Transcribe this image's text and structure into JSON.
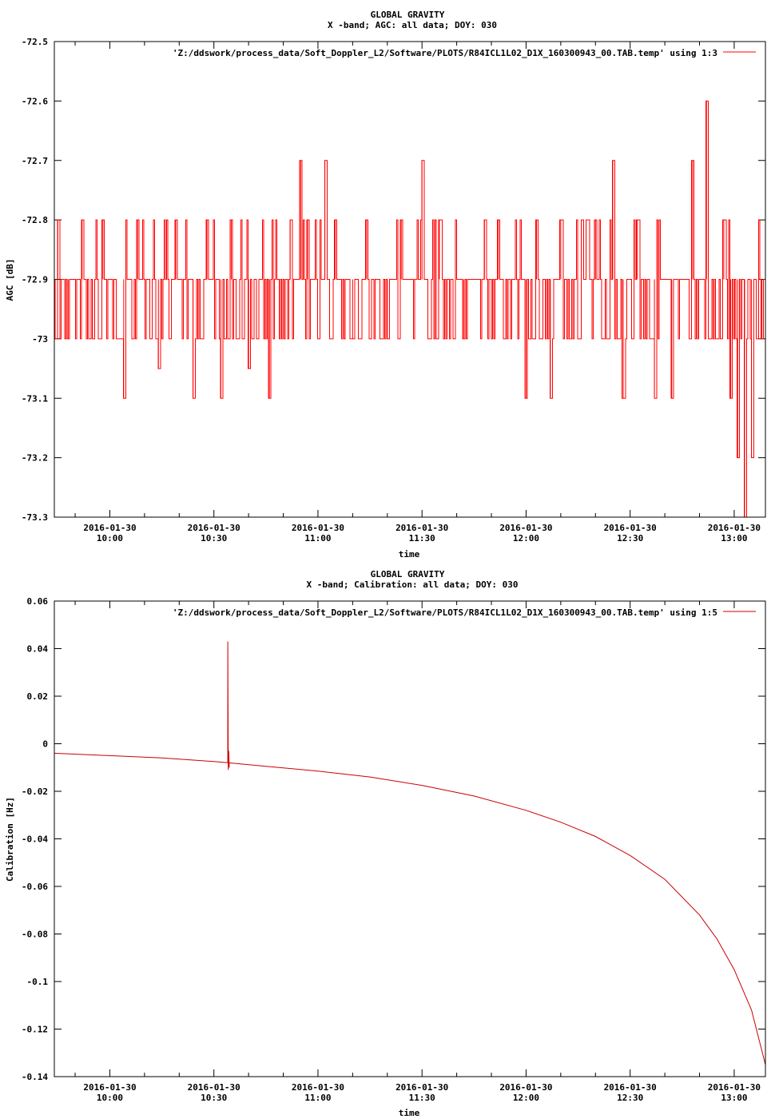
{
  "chart_data": [
    {
      "type": "line",
      "title": "GLOBAL GRAVITY",
      "subtitle": "X -band; AGC: all data; DOY: 030",
      "xlabel": "time",
      "ylabel": "AGC [dB]",
      "ylim": [
        -73.3,
        -72.5
      ],
      "yticks": [
        -72.5,
        -72.6,
        -72.7,
        -72.8,
        -72.9,
        -73,
        -73.1,
        -73.2,
        -73.3
      ],
      "ytick_labels": [
        "-72.5",
        "-72.6",
        "-72.7",
        "-72.8",
        "-72.9",
        "-73",
        "-73.1",
        "-73.2",
        "-73.3"
      ],
      "xlim": [
        "09:44",
        "13:09"
      ],
      "xtick_dates": [
        "2016-01-30",
        "2016-01-30",
        "2016-01-30",
        "2016-01-30",
        "2016-01-30",
        "2016-01-30",
        "2016-01-30"
      ],
      "xtick_times": [
        "10:00",
        "10:30",
        "11:00",
        "11:30",
        "12:00",
        "12:30",
        "13:00"
      ],
      "grid": false,
      "legend_position": "top-right",
      "series": [
        {
          "name": "'Z:/ddswork/process_data/Soft_Doppler_L2/Software/PLOTS/R84ICL1L02_D1X_160300943_00.TAB.temp' using 1:3",
          "color": "#ff0000",
          "baseline": -72.9,
          "baseline_alt": -73.0,
          "x": [
            "09:45",
            "09:48",
            "09:52",
            "09:55",
            "09:58",
            "10:04",
            "10:08",
            "10:14",
            "10:19",
            "10:24",
            "10:28",
            "10:32",
            "10:35",
            "10:40",
            "10:46",
            "10:52",
            "10:55",
            "10:57",
            "11:02",
            "11:05",
            "11:10",
            "11:14",
            "11:20",
            "11:24",
            "11:30",
            "11:35",
            "11:42",
            "11:48",
            "11:52",
            "12:00",
            "12:03",
            "12:07",
            "12:10",
            "12:20",
            "12:25",
            "12:28",
            "12:32",
            "12:37",
            "12:42",
            "12:48",
            "12:52",
            "12:57",
            "12:59",
            "13:01",
            "13:03",
            "13:05",
            "13:08"
          ],
          "values": [
            -72.8,
            -73.0,
            -72.8,
            -73.0,
            -72.8,
            -73.1,
            -72.8,
            -73.05,
            -72.8,
            -73.1,
            -72.8,
            -73.1,
            -72.8,
            -73.05,
            -73.1,
            -72.8,
            -72.7,
            -72.8,
            -72.7,
            -72.8,
            -73.0,
            -72.8,
            -73.0,
            -72.8,
            -72.7,
            -72.8,
            -73.0,
            -72.8,
            -72.8,
            -73.1,
            -72.8,
            -73.1,
            -72.8,
            -72.8,
            -72.7,
            -73.1,
            -72.8,
            -73.1,
            -73.1,
            -72.7,
            -72.6,
            -72.8,
            -73.1,
            -73.2,
            -73.3,
            -73.2,
            -73.0
          ]
        }
      ]
    },
    {
      "type": "line",
      "title": "GLOBAL GRAVITY",
      "subtitle": "X -band; Calibration: all data; DOY: 030",
      "xlabel": "time",
      "ylabel": "Calibration [Hz]",
      "ylim": [
        -0.14,
        0.06
      ],
      "yticks": [
        0.06,
        0.04,
        0.02,
        0,
        -0.02,
        -0.04,
        -0.06,
        -0.08,
        -0.1,
        -0.12,
        -0.14
      ],
      "ytick_labels": [
        "0.06",
        "0.04",
        "0.02",
        "0",
        "-0.02",
        "-0.04",
        "-0.06",
        "-0.08",
        "-0.1",
        "-0.12",
        "-0.14"
      ],
      "xlim": [
        "09:44",
        "13:09"
      ],
      "xtick_dates": [
        "2016-01-30",
        "2016-01-30",
        "2016-01-30",
        "2016-01-30",
        "2016-01-30",
        "2016-01-30",
        "2016-01-30"
      ],
      "xtick_times": [
        "10:00",
        "10:30",
        "11:00",
        "11:30",
        "12:00",
        "12:30",
        "13:00"
      ],
      "grid": false,
      "legend_position": "top-right",
      "series": [
        {
          "name": "'Z:/ddswork/process_data/Soft_Doppler_L2/Software/PLOTS/R84ICL1L02_D1X_160300943_00.TAB.temp' using 1:5",
          "color": "#cc0000",
          "x": [
            "09:44",
            "10:00",
            "10:15",
            "10:30",
            "10:34",
            "10:45",
            "11:00",
            "11:15",
            "11:30",
            "11:45",
            "12:00",
            "12:10",
            "12:20",
            "12:30",
            "12:40",
            "12:50",
            "12:55",
            "13:00",
            "13:05",
            "13:09"
          ],
          "values": [
            -0.004,
            -0.005,
            -0.006,
            -0.0075,
            -0.008,
            -0.0095,
            -0.0115,
            -0.014,
            -0.0175,
            -0.022,
            -0.028,
            -0.033,
            -0.039,
            -0.047,
            -0.057,
            -0.072,
            -0.082,
            -0.095,
            -0.112,
            -0.135
          ],
          "spike": {
            "x": "10:34",
            "values": [
              0.043,
              -0.011,
              -0.003,
              -0.01
            ]
          }
        }
      ]
    }
  ]
}
